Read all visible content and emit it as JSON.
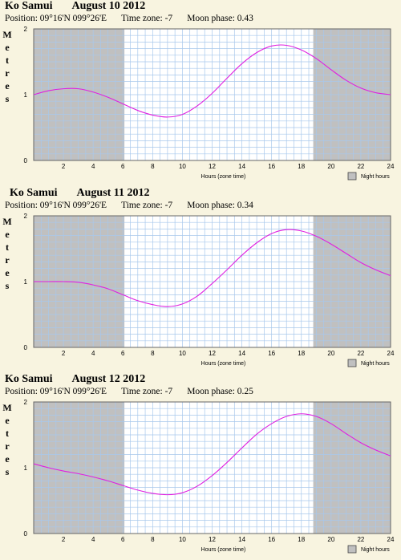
{
  "chart_data": [
    {
      "type": "line",
      "title": "Ko Samui",
      "date": "August 10 2012",
      "position": "Position: 09°16'N 099°26'E",
      "timezone": "Time zone: -7",
      "moon": "Moon phase: 0.43",
      "ylabel": "Metres",
      "xlabel": "Hours (zone time)",
      "legend": "Night hours",
      "xlim": [
        0,
        24
      ],
      "ylim": [
        0,
        2
      ],
      "xticks": [
        2,
        4,
        6,
        8,
        10,
        12,
        14,
        16,
        18,
        20,
        22,
        24
      ],
      "yticks": [
        0,
        1,
        2
      ],
      "night": [
        [
          0,
          6.1
        ],
        [
          18.8,
          24
        ]
      ],
      "series": [
        {
          "color": "#e020e0",
          "x": [
            0,
            1,
            2,
            3,
            4,
            5,
            6,
            7,
            8,
            9,
            10,
            11,
            12,
            13,
            14,
            15,
            16,
            17,
            18,
            19,
            20,
            21,
            22,
            23,
            24
          ],
          "values": [
            1.0,
            1.06,
            1.09,
            1.09,
            1.04,
            0.96,
            0.86,
            0.76,
            0.69,
            0.66,
            0.7,
            0.83,
            1.02,
            1.25,
            1.47,
            1.64,
            1.74,
            1.75,
            1.68,
            1.55,
            1.38,
            1.22,
            1.1,
            1.03,
            1.0
          ]
        }
      ]
    },
    {
      "type": "line",
      "title": "Ko Samui",
      "date": "August 11 2012",
      "position": "Position: 09°16'N 099°26'E",
      "timezone": "Time zone: -7",
      "moon": "Moon phase: 0.34",
      "ylabel": "Metres",
      "xlabel": "Hours (zone time)",
      "legend": "Night hours",
      "xlim": [
        0,
        24
      ],
      "ylim": [
        0,
        2
      ],
      "xticks": [
        2,
        4,
        6,
        8,
        10,
        12,
        14,
        16,
        18,
        20,
        22,
        24
      ],
      "yticks": [
        0,
        1,
        2
      ],
      "night": [
        [
          0,
          6.1
        ],
        [
          18.8,
          24
        ]
      ],
      "series": [
        {
          "color": "#e020e0",
          "x": [
            0,
            1,
            2,
            3,
            4,
            5,
            6,
            7,
            8,
            9,
            10,
            11,
            12,
            13,
            14,
            15,
            16,
            17,
            18,
            19,
            20,
            21,
            22,
            23,
            24
          ],
          "values": [
            1.0,
            1.0,
            1.0,
            0.99,
            0.95,
            0.89,
            0.8,
            0.71,
            0.65,
            0.62,
            0.66,
            0.78,
            0.97,
            1.18,
            1.4,
            1.59,
            1.73,
            1.79,
            1.77,
            1.69,
            1.57,
            1.43,
            1.29,
            1.18,
            1.09
          ]
        }
      ]
    },
    {
      "type": "line",
      "title": "Ko Samui",
      "date": "August 12 2012",
      "position": "Position: 09°16'N 099°26'E",
      "timezone": "Time zone: -7",
      "moon": "Moon phase: 0.25",
      "ylabel": "Metres",
      "xlabel": "Hours (zone time)",
      "legend": "Night hours",
      "xlim": [
        0,
        24
      ],
      "ylim": [
        0,
        2
      ],
      "xticks": [
        2,
        4,
        6,
        8,
        10,
        12,
        14,
        16,
        18,
        20,
        22,
        24
      ],
      "yticks": [
        0,
        1,
        2
      ],
      "night": [
        [
          0,
          6.1
        ],
        [
          18.8,
          24
        ]
      ],
      "series": [
        {
          "color": "#e020e0",
          "x": [
            0,
            1,
            2,
            3,
            4,
            5,
            6,
            7,
            8,
            9,
            10,
            11,
            12,
            13,
            14,
            15,
            16,
            17,
            18,
            19,
            20,
            21,
            22,
            23,
            24
          ],
          "values": [
            1.06,
            1.0,
            0.95,
            0.91,
            0.86,
            0.8,
            0.73,
            0.66,
            0.61,
            0.59,
            0.62,
            0.72,
            0.88,
            1.08,
            1.3,
            1.51,
            1.67,
            1.78,
            1.82,
            1.78,
            1.67,
            1.52,
            1.38,
            1.27,
            1.18
          ]
        }
      ]
    }
  ]
}
